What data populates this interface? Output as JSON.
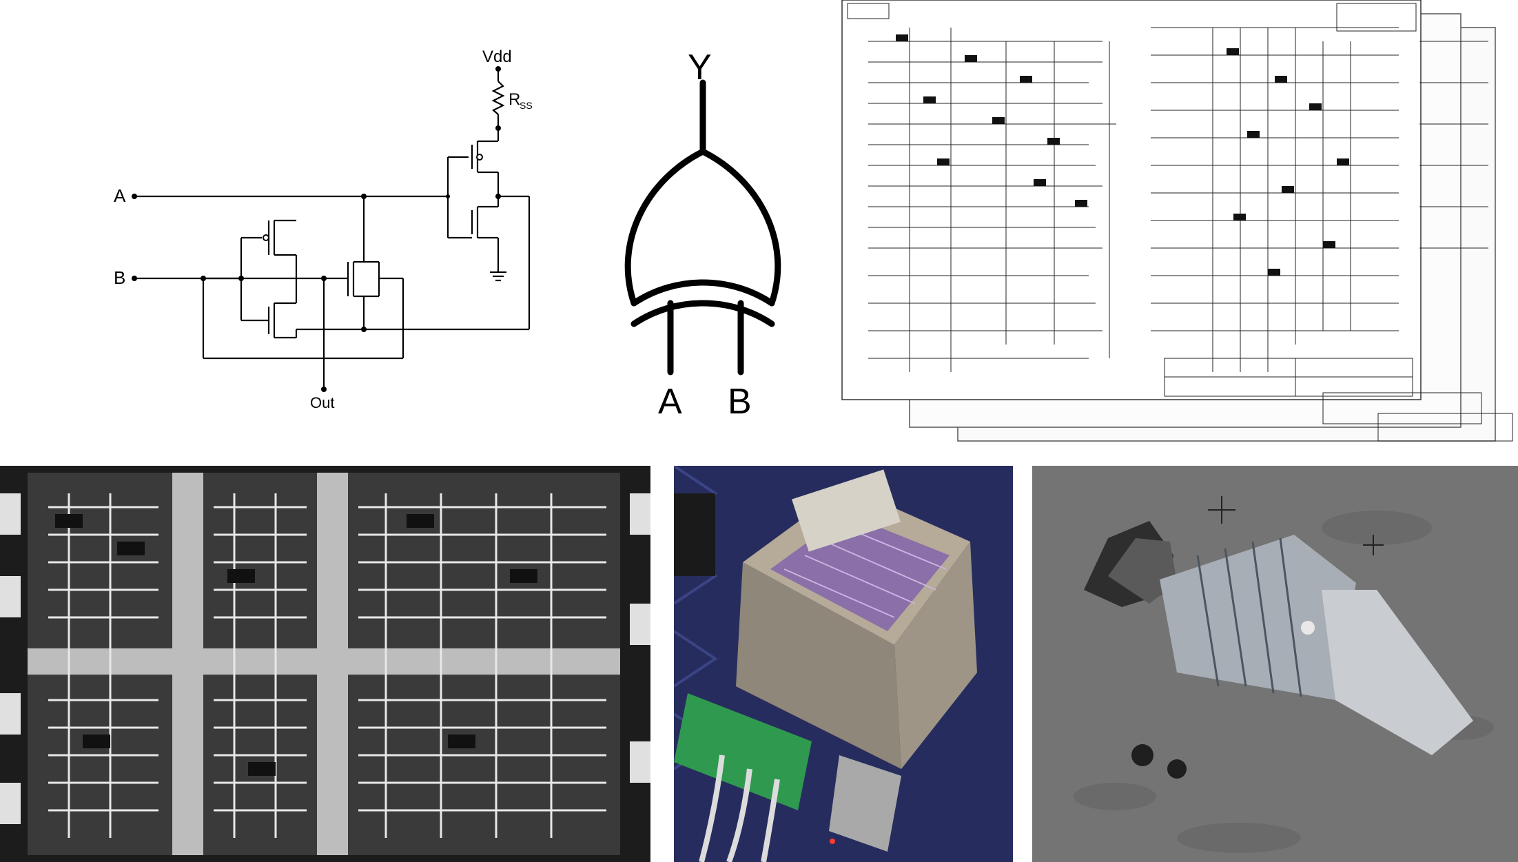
{
  "circuit": {
    "vdd_label": "Vdd",
    "resistor_label": "R",
    "resistor_sub": "SS",
    "input_a": "A",
    "input_b": "B",
    "output": "Out"
  },
  "gate": {
    "output": "Y",
    "input_a": "A",
    "input_b": "B"
  },
  "photos": {
    "die": "integrated-circuit-die-micrograph",
    "board": "computer-module-on-blanket",
    "spacecraft": "spacecraft-over-moon"
  }
}
